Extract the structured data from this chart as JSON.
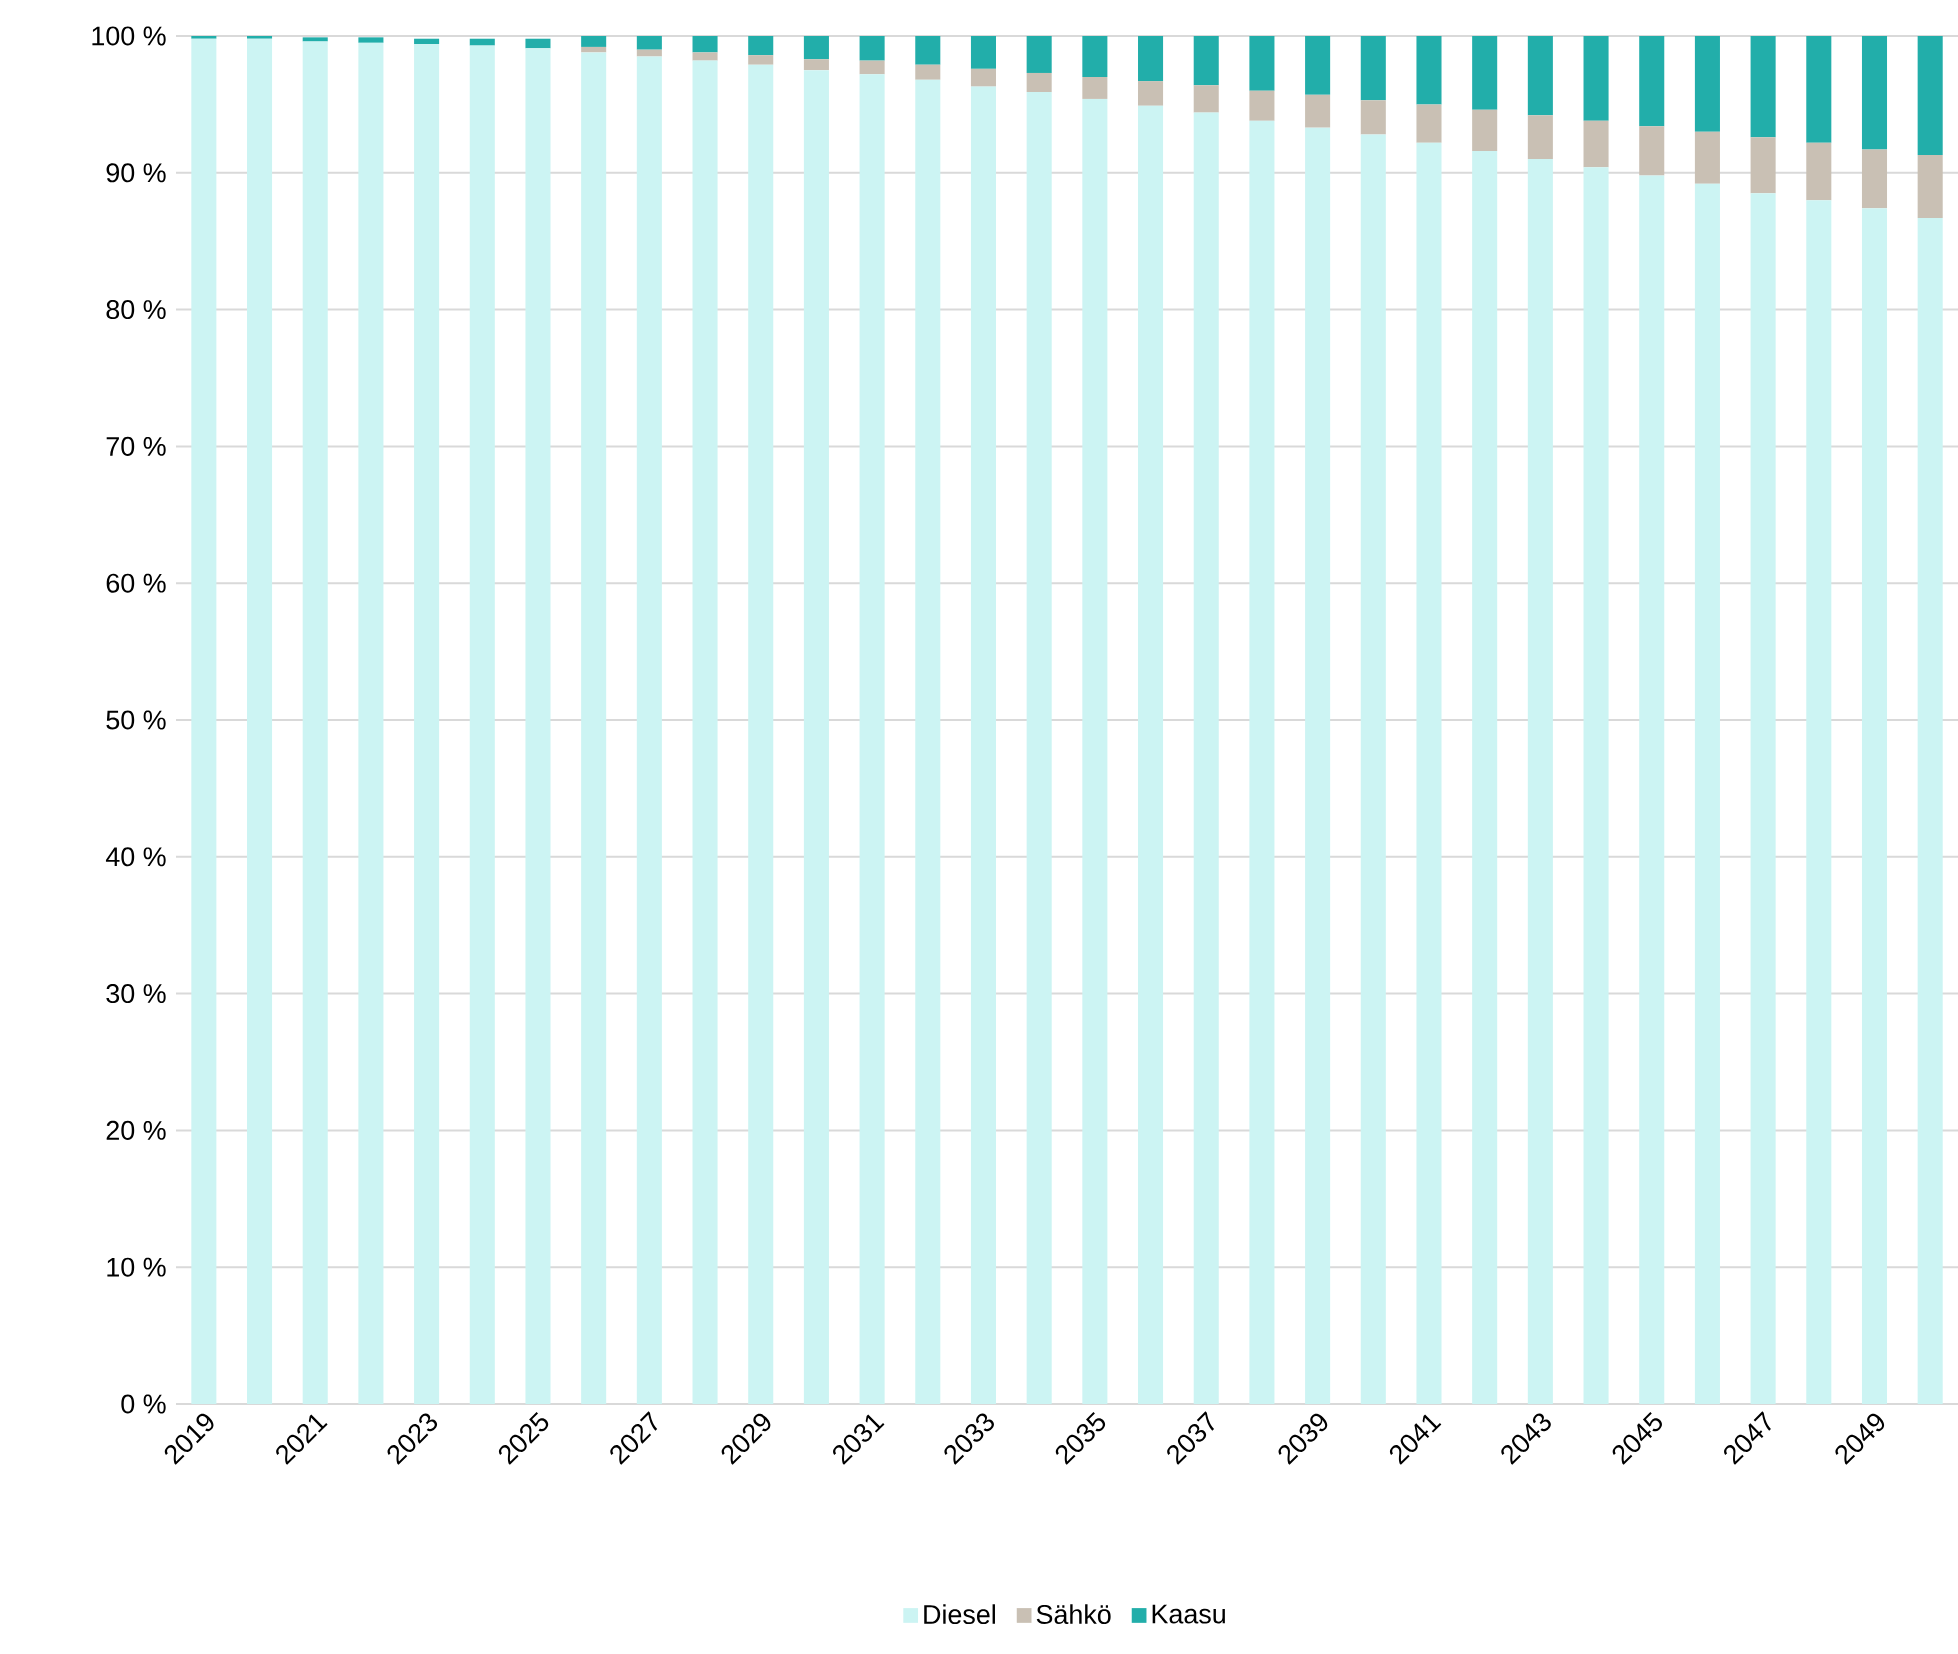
{
  "chart_data": {
    "type": "bar",
    "stacked": true,
    "categories": [
      "2019",
      null,
      "2021",
      null,
      "2023",
      null,
      "2025",
      null,
      "2027",
      null,
      "2029",
      null,
      "2031",
      null,
      "2033",
      null,
      "2035",
      null,
      "2037",
      null,
      "2039",
      null,
      "2041",
      null,
      "2043",
      null,
      "2045",
      null,
      "2047",
      null,
      "2049",
      null
    ],
    "series": [
      {
        "name": "Diesel",
        "color": "#ccf4f3",
        "values": [
          99.8,
          99.8,
          99.6,
          99.5,
          99.4,
          99.3,
          99.1,
          98.8,
          98.5,
          98.2,
          97.9,
          97.5,
          97.2,
          96.8,
          96.3,
          95.9,
          95.4,
          94.9,
          94.4,
          93.8,
          93.3,
          92.8,
          92.2,
          91.6,
          91.0,
          90.4,
          89.8,
          89.2,
          88.5,
          88.0,
          87.4,
          86.7
        ]
      },
      {
        "name": "Sähkö",
        "color": "#c9c0b4",
        "values": [
          null,
          null,
          null,
          null,
          null,
          null,
          null,
          0.4,
          0.5,
          0.6,
          0.7,
          0.8,
          1.0,
          1.1,
          1.3,
          1.4,
          1.6,
          1.8,
          2.0,
          2.2,
          2.4,
          2.5,
          2.8,
          3.0,
          3.2,
          3.4,
          3.6,
          3.8,
          4.1,
          4.2,
          4.3,
          4.6
        ]
      },
      {
        "name": "Kaasu",
        "color": "#22aeaa",
        "values": [
          0.2,
          0.2,
          0.3,
          0.4,
          0.4,
          0.5,
          0.7,
          0.8,
          1.0,
          1.2,
          1.4,
          1.7,
          1.8,
          2.1,
          2.4,
          2.7,
          3.0,
          3.3,
          3.6,
          4.0,
          4.3,
          4.7,
          5.0,
          5.4,
          5.8,
          6.2,
          6.6,
          7.0,
          7.4,
          7.8,
          8.3,
          8.7
        ]
      }
    ],
    "ylim": [
      0,
      100
    ],
    "yticks": [
      {
        "value": 0,
        "label": "0 %"
      },
      {
        "value": 10,
        "label": "10 %"
      },
      {
        "value": 20,
        "label": "20 %"
      },
      {
        "value": 30,
        "label": "30 %"
      },
      {
        "value": 40,
        "label": "40 %"
      },
      {
        "value": 50,
        "label": "50 %"
      },
      {
        "value": 60,
        "label": "60 %"
      },
      {
        "value": 70,
        "label": "70 %"
      },
      {
        "value": 80,
        "label": "80 %"
      },
      {
        "value": 90,
        "label": "90 %"
      },
      {
        "value": 100,
        "label": "100 %"
      }
    ],
    "grid": "y",
    "legend": "bottom"
  }
}
